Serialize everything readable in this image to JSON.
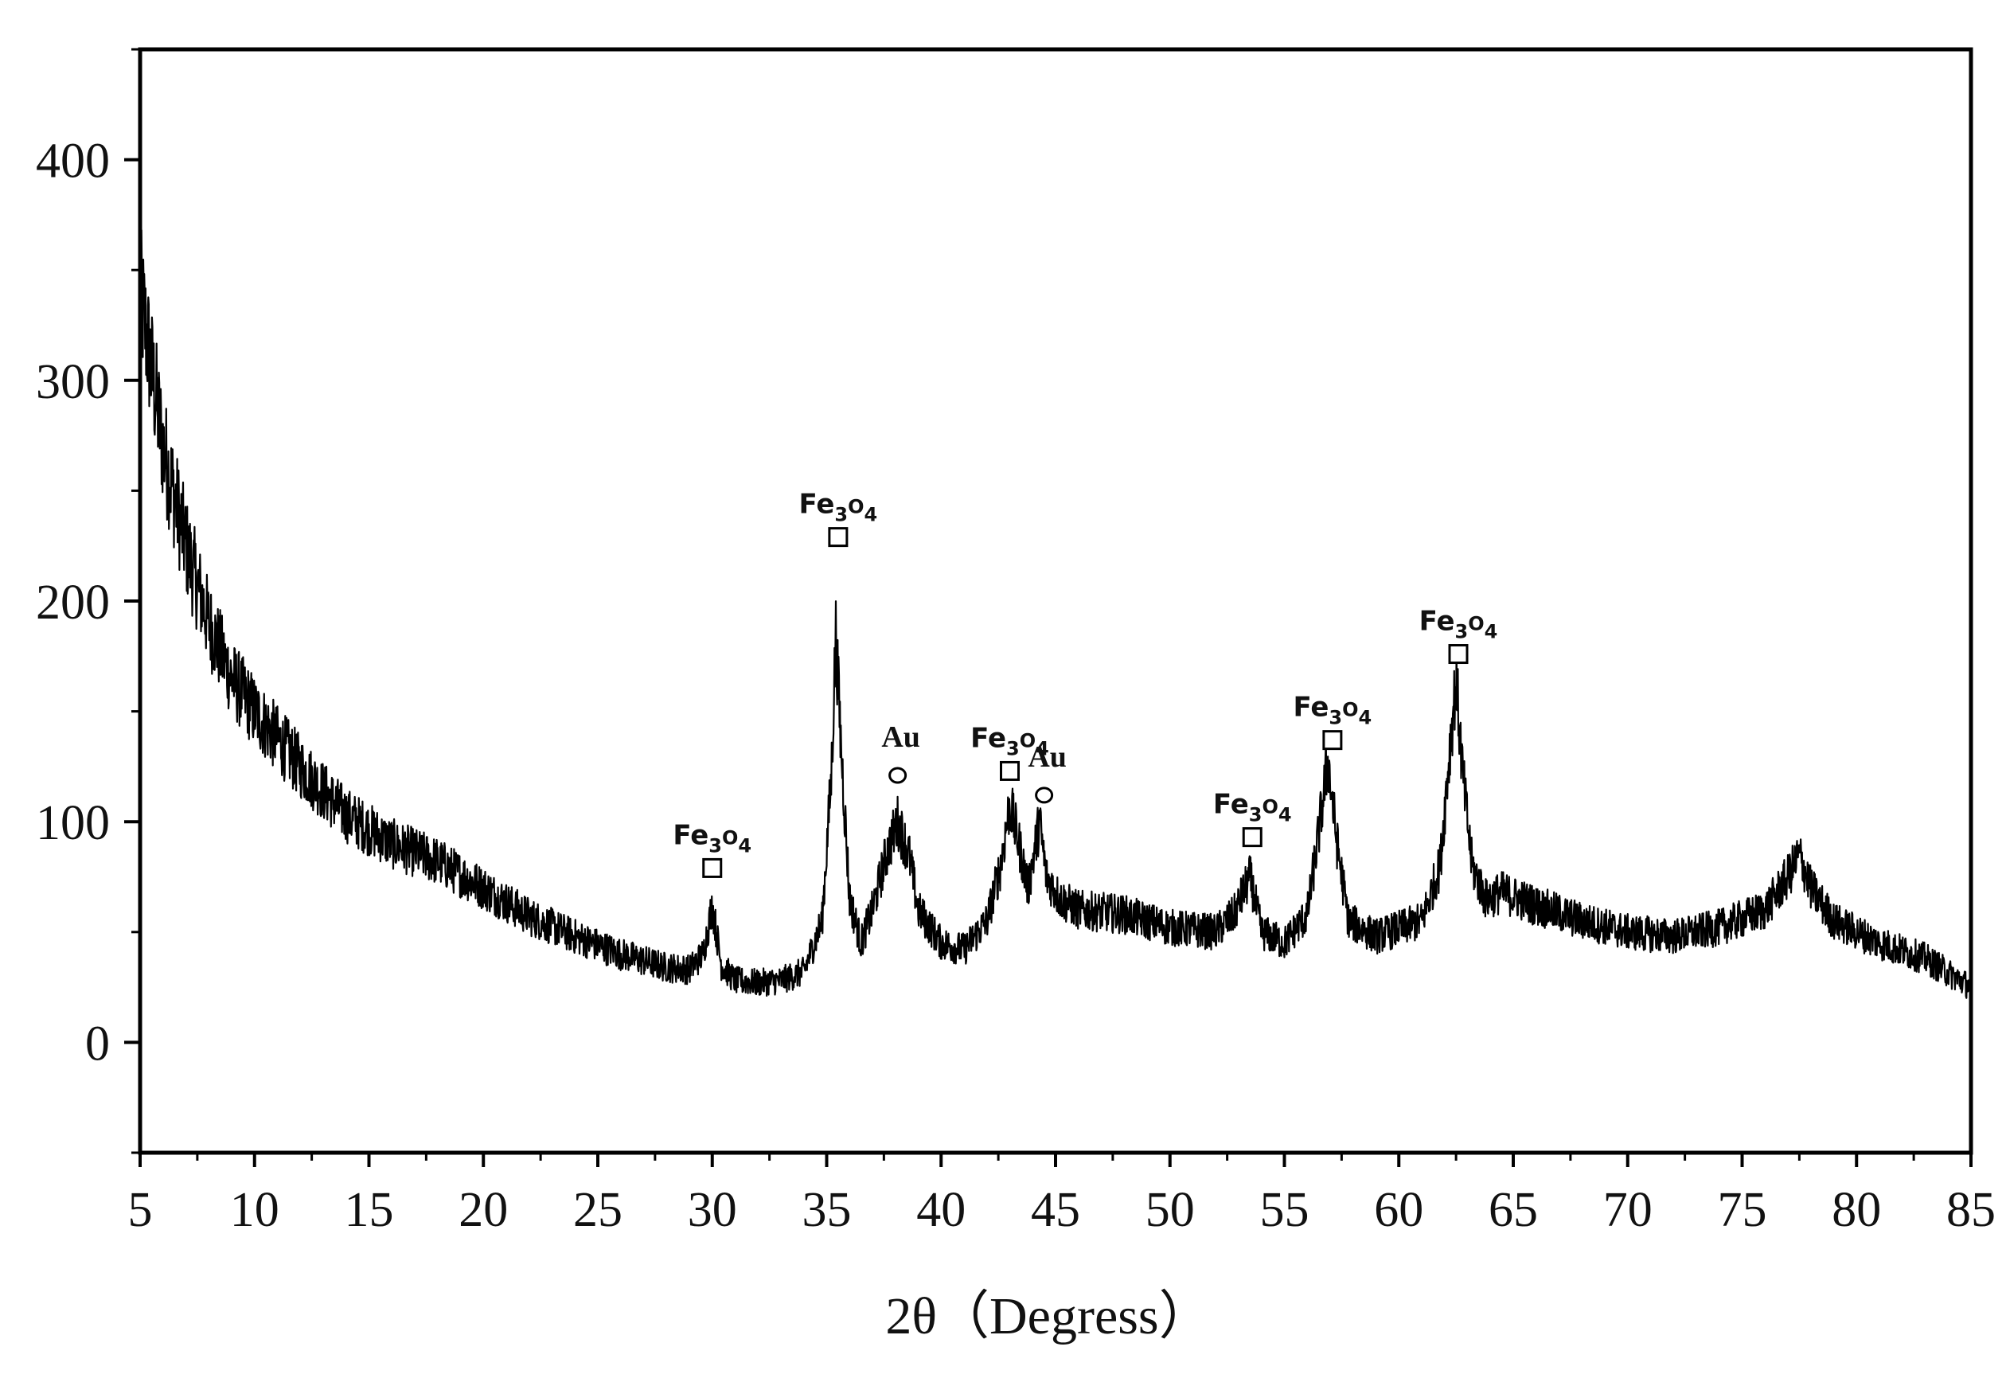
{
  "chart_data": {
    "type": "line",
    "title": "",
    "xlabel": "2θ（Degress）",
    "ylabel": "",
    "xlim": [
      5,
      85
    ],
    "ylim": [
      -50,
      450
    ],
    "x_ticks": [
      5,
      10,
      15,
      20,
      25,
      30,
      35,
      40,
      45,
      50,
      55,
      60,
      65,
      70,
      75,
      80,
      85
    ],
    "y_ticks": [
      0,
      100,
      200,
      300,
      400
    ],
    "grid": false,
    "legend": "none",
    "series": [
      {
        "name": "",
        "color": "#000000",
        "x": [
          5,
          6,
          7,
          8,
          9,
          10,
          12,
          14,
          16,
          18,
          20,
          22,
          24,
          26,
          28,
          29,
          29.6,
          30.0,
          30.4,
          31,
          32,
          33,
          34,
          34.8,
          35.2,
          35.4,
          35.6,
          36.0,
          36.5,
          37.0,
          37.6,
          38.1,
          38.6,
          39.0,
          40,
          41,
          42,
          42.6,
          43.0,
          43.4,
          43.8,
          44.1,
          44.3,
          44.6,
          45.2,
          46,
          48,
          50,
          52,
          52.8,
          53.5,
          54.0,
          55,
          56,
          56.5,
          56.9,
          57.3,
          57.8,
          59,
          61,
          61.8,
          62.2,
          62.5,
          62.8,
          63.2,
          63.8,
          64.5,
          66,
          68,
          70,
          72,
          74,
          76,
          77.0,
          77.5,
          78.0,
          79,
          81,
          83,
          85
        ],
        "y": [
          340,
          270,
          225,
          190,
          165,
          150,
          125,
          103,
          90,
          82,
          70,
          57,
          48,
          40,
          34,
          33,
          40,
          62,
          35,
          28,
          27,
          28,
          32,
          55,
          120,
          185,
          140,
          65,
          45,
          60,
          85,
          100,
          85,
          60,
          45,
          42,
          55,
          80,
          108,
          90,
          70,
          88,
          100,
          75,
          65,
          60,
          58,
          52,
          50,
          58,
          75,
          50,
          45,
          58,
          95,
          128,
          90,
          55,
          48,
          55,
          80,
          130,
          165,
          120,
          80,
          65,
          68,
          62,
          55,
          50,
          48,
          52,
          60,
          75,
          85,
          70,
          55,
          45,
          38,
          25
        ]
      }
    ],
    "annotations": [
      {
        "label": "Fe3O4",
        "marker": "square",
        "x": 30.0,
        "y": 79
      },
      {
        "label": "Fe3O4",
        "marker": "square",
        "x": 35.5,
        "y": 229
      },
      {
        "label": "Au",
        "marker": "circle",
        "x": 38.1,
        "y": 121
      },
      {
        "label": "Fe3O4",
        "marker": "square",
        "x": 43.0,
        "y": 123
      },
      {
        "label": "Au",
        "marker": "circle",
        "x": 44.5,
        "y": 112
      },
      {
        "label": "Fe3O4",
        "marker": "square",
        "x": 53.6,
        "y": 93
      },
      {
        "label": "Fe3O4",
        "marker": "square",
        "x": 57.1,
        "y": 137
      },
      {
        "label": "Fe3O4",
        "marker": "square",
        "x": 62.6,
        "y": 176
      }
    ]
  }
}
